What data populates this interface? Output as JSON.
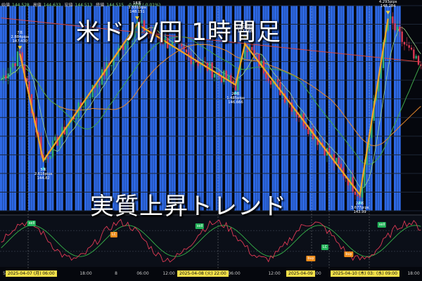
{
  "ohlc_bar": {
    "open_label": "始値",
    "open": "144.528",
    "high_label": "高値",
    "high": "144.633",
    "low_label": "安値",
    "low": "144.513",
    "close_label": "終値",
    "close": "144.515",
    "change": "-0.009 (-0.01%)"
  },
  "title": "米ドル/円 1時間足",
  "subtitle": "実質上昇トレンド",
  "colors": {
    "background": "#05070d",
    "band": "#2f6ef0",
    "grid": "#1c2636",
    "up": "#2fb07a",
    "down": "#e03a55",
    "zigzag": "#f5a623",
    "ma_red": "#d9453f",
    "ma_orange": "#e6892c",
    "ma_green": "#3fa54a",
    "ma_light": "#9cd48a",
    "osc_green": "#36b34a",
    "osc_red": "#e03a55",
    "marker_yellow": "#f1d23a",
    "marker_cyan": "#27c1d8"
  },
  "chart_data": {
    "type": "candlestick",
    "y_range": [
      143.6,
      148.6
    ],
    "zigzag_points": [
      {
        "bar": 8,
        "price": 147.43
      },
      {
        "bar": 18,
        "price": 144.82
      },
      {
        "bar": 58,
        "price": 148.151
      },
      {
        "bar": 100,
        "price": 146.666
      },
      {
        "bar": 104,
        "price": 147.668
      },
      {
        "bar": 153,
        "price": 143.99
      },
      {
        "bar": 165,
        "price": 148.284
      }
    ],
    "annotations": [
      {
        "bars": "7本",
        "pips": "2.884pips",
        "price": "147.430"
      },
      {
        "bars": "5本",
        "pips": "2.616pips",
        "price": "144.82"
      },
      {
        "bars": "18本",
        "pips": "3.331pips",
        "price": "148.151"
      },
      {
        "bars": "20本",
        "pips": "1.485pips",
        "price": "146.666"
      },
      {
        "bars": "1本",
        "pips": "1.002pips",
        "price": "147.668"
      },
      {
        "bars": "22本",
        "pips": "3.677pips",
        "price": "143.99"
      },
      {
        "bars": "6本",
        "pips": "4.293pips",
        "price": "148.284"
      }
    ],
    "signals": [
      {
        "label": "sell",
        "kind": "sell"
      },
      {
        "label": "LC",
        "kind": "lc-orange"
      },
      {
        "label": "sell",
        "kind": "sell"
      },
      {
        "label": "buy",
        "kind": "buy"
      },
      {
        "label": "LC",
        "kind": "lc-green"
      },
      {
        "label": "buy",
        "kind": "buy"
      },
      {
        "label": "sell",
        "kind": "sell"
      }
    ],
    "x_ticks": [
      "5",
      "12:00",
      "18:00",
      "8",
      "06:00",
      "12:00",
      "18:00",
      "06:00",
      "12:00",
      "18:00",
      "06:00",
      "12:00",
      "18:00"
    ],
    "date_tags": [
      {
        "text": "2025-04-07 (月)  06:00",
        "style": "yellow"
      },
      {
        "text": "2025-04-08 (火)  22:00",
        "style": "yellow"
      },
      {
        "text": "2025-04-09",
        "style": "yellow"
      },
      {
        "text": "2025-04-10 (木)  03:00",
        "style": "yellow"
      },
      {
        "text": "(水) 09:00",
        "style": "yellow"
      }
    ]
  }
}
